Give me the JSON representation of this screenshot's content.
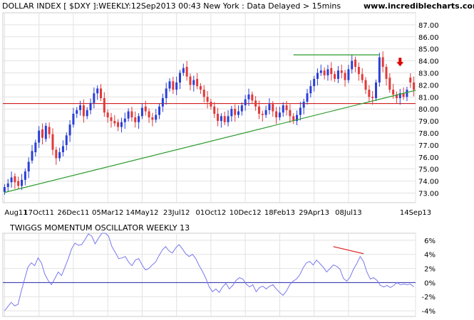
{
  "header": {
    "title": "DOLLAR INDEX [ $DXY ]:WEEKLY:12Sep2013 00:43 New York : Data Delayed > 15mins",
    "site": "www.incrediblecharts.com"
  },
  "chart_data": [
    {
      "type": "candlestick",
      "title": "DOLLAR INDEX [ $DXY ]:WEEKLY:12Sep2013 00:43 New York : Data Delayed > 15mins",
      "ylim": [
        72.2,
        88.0
      ],
      "y_ticks": [
        "73.00",
        "74.00",
        "75.00",
        "76.00",
        "77.00",
        "78.00",
        "79.00",
        "80.00",
        "81.00",
        "82.00",
        "83.00",
        "84.00",
        "85.00",
        "86.00",
        "87.00"
      ],
      "x_ticks": [
        "Aug11",
        "17Oct11",
        "26Dec11",
        "05Mar12",
        "14May12",
        "23Jul12",
        "01Oct12",
        "10Dec12",
        "18Feb13",
        "29Apr13",
        "08Jul13",
        "14Sep13"
      ],
      "grid": true,
      "up_color": "#2a3fd8",
      "down_color": "#e03a3a",
      "closes": [
        73.5,
        73.8,
        74.3,
        73.9,
        73.6,
        74.1,
        74.8,
        75.6,
        76.5,
        77.2,
        78.2,
        77.6,
        78.6,
        77.9,
        76.6,
        75.9,
        76.4,
        76.9,
        77.8,
        78.7,
        79.6,
        79.9,
        80.3,
        79.4,
        79.9,
        80.5,
        81.3,
        81.7,
        80.9,
        79.7,
        79.3,
        79.0,
        78.8,
        78.5,
        78.9,
        79.2,
        79.8,
        79.3,
        78.9,
        79.4,
        80.1,
        79.8,
        79.3,
        79.1,
        79.5,
        80.2,
        80.9,
        81.7,
        82.3,
        81.6,
        82.2,
        83.0,
        83.4,
        82.7,
        82.0,
        82.4,
        81.9,
        81.6,
        81.0,
        80.6,
        80.2,
        79.6,
        79.0,
        79.4,
        78.9,
        79.4,
        80.0,
        79.5,
        79.8,
        80.3,
        80.8,
        81.2,
        80.7,
        80.2,
        79.6,
        79.5,
        79.9,
        80.4,
        79.8,
        79.3,
        79.7,
        80.3,
        79.9,
        79.4,
        79.0,
        79.5,
        80.1,
        80.6,
        81.3,
        81.9,
        82.5,
        83.0,
        83.2,
        82.8,
        83.3,
        82.9,
        82.5,
        83.2,
        83.0,
        82.4,
        83.3,
        84.0,
        83.5,
        82.9,
        82.4,
        81.6,
        81.0,
        80.9,
        82.2,
        84.3,
        83.5,
        82.5,
        81.6,
        81.2,
        80.9,
        81.3,
        81.0,
        81.6,
        82.2,
        81.6
      ],
      "opens": [
        73.1,
        73.5,
        73.9,
        74.4,
        74.0,
        73.6,
        74.1,
        74.8,
        75.7,
        76.4,
        77.2,
        78.3,
        77.5,
        78.5,
        77.9,
        76.6,
        75.9,
        76.4,
        77.0,
        77.8,
        78.7,
        79.6,
        79.9,
        80.3,
        79.4,
        79.9,
        80.5,
        81.3,
        81.7,
        80.9,
        79.7,
        79.3,
        79.0,
        78.9,
        78.5,
        78.9,
        79.2,
        79.8,
        79.3,
        78.9,
        79.4,
        80.2,
        79.8,
        79.3,
        79.1,
        79.5,
        80.2,
        80.9,
        81.7,
        82.3,
        81.6,
        82.2,
        83.0,
        83.5,
        82.7,
        82.0,
        82.5,
        81.9,
        81.6,
        81.0,
        80.6,
        80.2,
        79.6,
        79.0,
        79.4,
        78.9,
        79.4,
        80.0,
        79.5,
        79.8,
        80.3,
        80.8,
        81.2,
        80.7,
        80.2,
        79.6,
        79.5,
        79.9,
        80.4,
        79.8,
        79.3,
        79.7,
        80.3,
        79.9,
        79.4,
        79.0,
        79.5,
        80.1,
        80.6,
        81.3,
        81.9,
        82.5,
        83.0,
        83.2,
        82.8,
        83.4,
        82.9,
        82.5,
        83.2,
        83.0,
        82.4,
        83.3,
        84.1,
        83.5,
        82.9,
        82.4,
        81.6,
        81.0,
        80.9,
        82.2,
        84.3,
        83.5,
        82.6,
        81.6,
        81.2,
        80.9,
        81.3,
        81.0,
        82.6,
        82.2
      ],
      "hlines": [
        {
          "value": 80.45,
          "color": "#cc0000"
        }
      ],
      "segments": [
        {
          "x1": 0,
          "y1": 73.05,
          "x2": 121,
          "y2": 81.55,
          "color": "#2a9a2a"
        },
        {
          "x1": 84,
          "y1": 84.5,
          "x2": 109,
          "y2": 84.5,
          "color": "#2a9a2a"
        }
      ],
      "arrow": {
        "index": 115,
        "value": 83.55,
        "color": "#dd0000"
      }
    },
    {
      "type": "line",
      "title": "TWIGGS MOMENTUM OSCILLATOR WEEKLY 13",
      "ylim": [
        -4.8,
        7.0
      ],
      "y_ticks": [
        "6%",
        "4%",
        "2%",
        "0%",
        "-2%",
        "-4%"
      ],
      "grid": true,
      "line_color": "#7878ee",
      "zero_line_color": "#2222aa",
      "values": [
        -4,
        -3.4,
        -2.8,
        -3.3,
        -3.1,
        -1.2,
        0.5,
        2.2,
        2.8,
        2.4,
        3.5,
        2.8,
        1.2,
        0.3,
        -0.3,
        0.6,
        1.5,
        1.0,
        2.2,
        3.4,
        4.8,
        5.6,
        5.3,
        5.4,
        6.1,
        6.9,
        6.6,
        5.5,
        6.3,
        7.0,
        7.0,
        6.6,
        5.1,
        4.3,
        3.4,
        3.5,
        3.7,
        2.9,
        2.4,
        3.2,
        3.4,
        2.5,
        1.8,
        2.0,
        2.5,
        2.9,
        3.8,
        4.6,
        5.1,
        4.5,
        4.2,
        4.9,
        5.4,
        4.8,
        4.1,
        3.7,
        4.0,
        3.4,
        2.4,
        1.6,
        0.6,
        -0.6,
        -1.3,
        -0.9,
        -1.4,
        -0.6,
        -0.1,
        -0.9,
        -0.4,
        0.3,
        0.7,
        0.5,
        -0.2,
        -0.6,
        -0.3,
        -1.3,
        -0.7,
        -0.5,
        -0.9,
        -0.5,
        -0.3,
        -0.9,
        -1.4,
        -1.8,
        -1.2,
        -0.3,
        0.2,
        0.5,
        1.1,
        2.1,
        2.8,
        3.0,
        2.5,
        3.2,
        2.7,
        2.2,
        1.5,
        2.0,
        2.5,
        2.3,
        1.9,
        0.6,
        0.2,
        0.8,
        1.9,
        2.7,
        3.7,
        3.0,
        1.5,
        0.5,
        0.7,
        0.3,
        -0.4,
        -0.6,
        -0.4,
        -0.7,
        -0.4,
        0.0,
        -0.3,
        -0.2,
        -0.3,
        -0.2,
        -0.6
      ],
      "segments": [
        {
          "x1": 98,
          "y1": 5.1,
          "x2": 107,
          "y2": 4.1,
          "color": "#dd2222"
        }
      ]
    }
  ]
}
